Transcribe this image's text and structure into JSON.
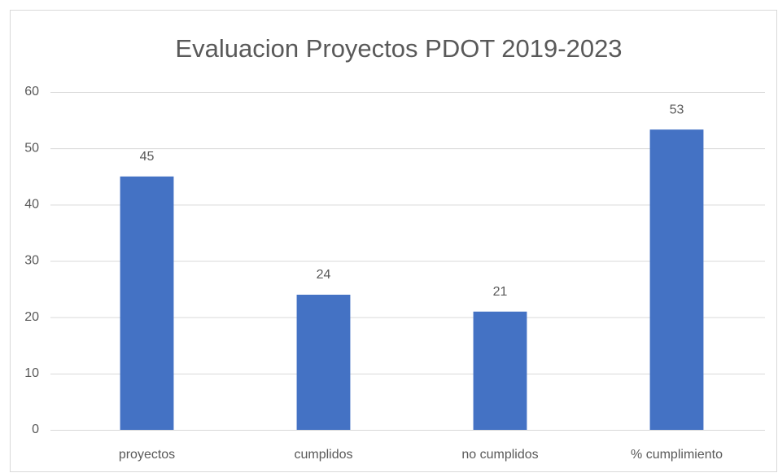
{
  "chart_data": {
    "type": "bar",
    "title": "Evaluacion Proyectos PDOT 2019-2023",
    "categories": [
      "proyectos",
      "cumplidos",
      "no cumplidos",
      "% cumplimiento"
    ],
    "values": [
      45,
      24,
      21,
      53.33
    ],
    "value_labels": [
      "45",
      "24",
      "21",
      "53"
    ],
    "color": "#4472c4",
    "ylim": [
      0,
      60
    ],
    "yticks": [
      0,
      10,
      20,
      30,
      40,
      50,
      60
    ],
    "grid": true
  }
}
